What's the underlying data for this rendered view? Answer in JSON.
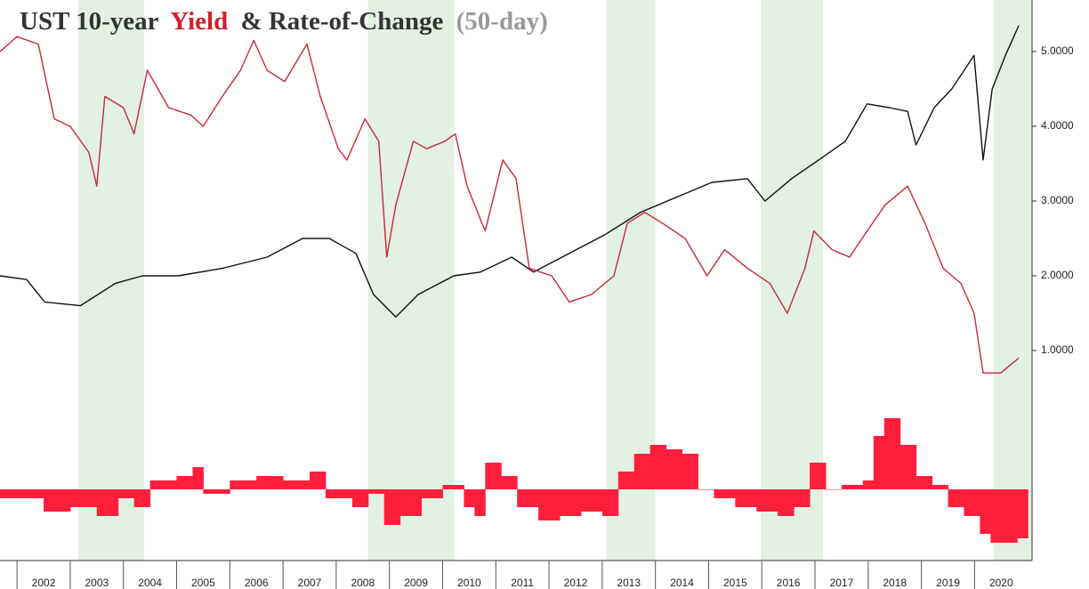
{
  "chart_data": {
    "type": "line",
    "title_parts": [
      {
        "text": "UST 10-year",
        "color": "#333333"
      },
      {
        "text": "Yield",
        "color": "#d0202a"
      },
      {
        "text": "& Rate-of-Change",
        "color": "#333333"
      },
      {
        "text": "(50-day)",
        "color": "#999999"
      }
    ],
    "xlim": [
      2001.68,
      2021.08
    ],
    "xticks": [
      2002,
      2003,
      2004,
      2005,
      2006,
      2007,
      2008,
      2009,
      2010,
      2011,
      2012,
      2013,
      2014,
      2015,
      2016,
      2017,
      2018,
      2019,
      2020
    ],
    "ylim": [
      -1.81,
      5.69
    ],
    "yticks": [
      {
        "value": 1,
        "label": "1.0000"
      },
      {
        "value": 2,
        "label": "2.0000"
      },
      {
        "value": 3,
        "label": "3.0000"
      },
      {
        "value": 4,
        "label": "4.0000"
      },
      {
        "value": 5,
        "label": "5.0000"
      }
    ],
    "y2lim": [
      -0.8,
      5.5
    ],
    "bands": [
      [
        2003.15,
        2004.39
      ],
      [
        2008.6,
        2010.21
      ],
      [
        2013.08,
        2014.0
      ],
      [
        2015.98,
        2017.15
      ],
      [
        2020.36,
        2021.08
      ]
    ],
    "band_color": "#e2f1e2",
    "series": [
      {
        "color": "#111111",
        "x": [
          2001.68,
          2002.18,
          2002.52,
          2003.19,
          2003.85,
          2004.36,
          2005.03,
          2005.86,
          2006.7,
          2007.37,
          2007.87,
          2008.37,
          2008.7,
          2009.12,
          2009.54,
          2010.21,
          2010.71,
          2011.3,
          2011.71,
          2012.38,
          2013.05,
          2013.72,
          2014.39,
          2015.06,
          2015.73,
          2016.06,
          2016.56,
          2017.07,
          2017.57,
          2017.98,
          2018.4,
          2018.74,
          2018.9,
          2019.24,
          2019.57,
          2019.99,
          2020.16,
          2020.33,
          2020.58,
          2020.83
        ],
        "values": [
          2.0,
          1.95,
          1.65,
          1.6,
          1.9,
          2.0,
          2.0,
          2.1,
          2.25,
          2.5,
          2.5,
          2.3,
          1.75,
          1.45,
          1.75,
          2.0,
          2.05,
          2.25,
          2.05,
          2.3,
          2.55,
          2.85,
          3.05,
          3.25,
          3.3,
          3.0,
          3.3,
          3.55,
          3.8,
          4.3,
          4.25,
          4.2,
          3.75,
          4.25,
          4.5,
          4.95,
          3.55,
          4.5,
          4.95,
          5.35
        ]
      },
      {
        "color": "#c8283c",
        "x": [
          2001.68,
          2002.0,
          2002.4,
          2002.7,
          2003.0,
          2003.35,
          2003.5,
          2003.65,
          2004.0,
          2004.2,
          2004.45,
          2004.85,
          2005.27,
          2005.5,
          2005.86,
          2006.2,
          2006.45,
          2006.7,
          2007.03,
          2007.45,
          2007.7,
          2008.04,
          2008.2,
          2008.54,
          2008.8,
          2008.95,
          2009.12,
          2009.45,
          2009.7,
          2010.04,
          2010.24,
          2010.46,
          2010.8,
          2011.13,
          2011.38,
          2011.63,
          2012.05,
          2012.38,
          2012.8,
          2013.22,
          2013.47,
          2013.8,
          2014.14,
          2014.56,
          2014.97,
          2015.3,
          2015.73,
          2016.15,
          2016.48,
          2016.81,
          2016.98,
          2017.32,
          2017.65,
          2017.98,
          2018.32,
          2018.74,
          2019.07,
          2019.41,
          2019.74,
          2019.99,
          2020.16,
          2020.49,
          2020.83
        ],
        "values": [
          5.0,
          5.2,
          5.1,
          4.1,
          4.0,
          3.65,
          3.2,
          4.4,
          4.25,
          3.9,
          4.75,
          4.25,
          4.15,
          4.0,
          4.4,
          4.75,
          5.15,
          4.75,
          4.6,
          5.1,
          4.4,
          3.7,
          3.55,
          4.1,
          3.8,
          2.25,
          2.95,
          3.8,
          3.7,
          3.8,
          3.9,
          3.2,
          2.6,
          3.55,
          3.3,
          2.1,
          2.0,
          1.65,
          1.75,
          2.0,
          2.7,
          2.85,
          2.7,
          2.5,
          2.0,
          2.35,
          2.1,
          1.9,
          1.5,
          2.1,
          2.6,
          2.35,
          2.25,
          2.6,
          2.95,
          3.2,
          2.7,
          2.1,
          1.9,
          1.5,
          0.7,
          0.7,
          0.9
        ]
      },
      {
        "type": "bar",
        "axis": "y2",
        "color": "#ff1f3d",
        "x": [
          2001.68,
          2002.0,
          2002.5,
          2003.0,
          2003.5,
          2003.9,
          2004.2,
          2004.5,
          2005.0,
          2005.3,
          2005.5,
          2006.0,
          2006.5,
          2007.0,
          2007.5,
          2007.8,
          2008.3,
          2008.6,
          2008.9,
          2009.2,
          2009.6,
          2010.0,
          2010.4,
          2010.6,
          2010.8,
          2011.1,
          2011.4,
          2011.8,
          2012.2,
          2012.6,
          2013.0,
          2013.3,
          2013.6,
          2013.9,
          2014.2,
          2014.5,
          2014.8,
          2015.1,
          2015.5,
          2015.9,
          2016.3,
          2016.6,
          2016.9,
          2017.2,
          2017.5,
          2017.9,
          2018.1,
          2018.3,
          2018.6,
          2018.9,
          2019.2,
          2019.5,
          2019.8,
          2020.1,
          2020.3,
          2020.6,
          2020.8
        ],
        "values": [
          -0.1,
          -0.1,
          -0.25,
          -0.2,
          -0.3,
          -0.1,
          -0.2,
          0.1,
          0.15,
          0.25,
          -0.05,
          0.1,
          0.15,
          0.1,
          0.2,
          -0.1,
          -0.2,
          -0.05,
          -0.4,
          -0.3,
          -0.1,
          0.05,
          -0.2,
          -0.3,
          0.3,
          0.15,
          -0.2,
          -0.35,
          -0.3,
          -0.25,
          -0.3,
          0.2,
          0.4,
          0.5,
          0.45,
          0.4,
          0,
          -0.1,
          -0.2,
          -0.25,
          -0.3,
          -0.2,
          0.3,
          0,
          0.05,
          0.1,
          0.6,
          0.8,
          0.5,
          0.15,
          0.05,
          -0.2,
          -0.3,
          -0.5,
          -0.6,
          -0.6,
          -0.55
        ]
      }
    ]
  }
}
